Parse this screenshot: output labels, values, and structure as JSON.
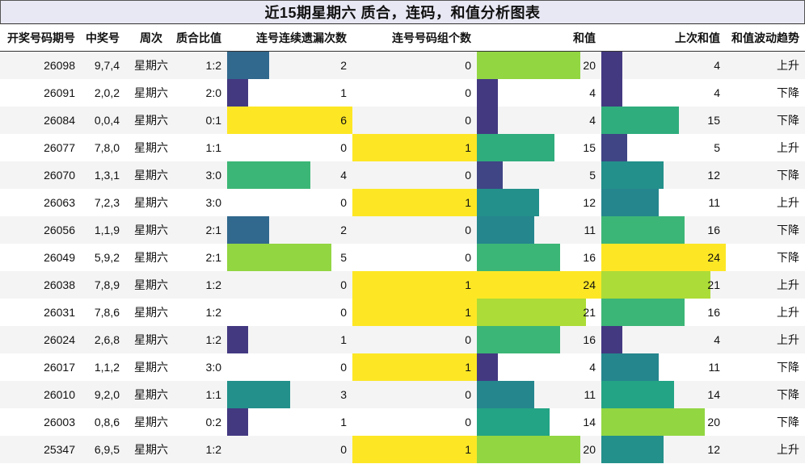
{
  "title": "近15期星期六 质合，连码，和值分析图表",
  "headers": {
    "issue": "开奖号码期号",
    "winning": "中奖号",
    "week": "周次",
    "ratio": "质合比值",
    "consec_miss": "连号连续遗漏次数",
    "consec_groups": "连号号码组个数",
    "sum": "和值",
    "prev_sum": "上次和值",
    "trend": "和值波动趋势"
  },
  "rows": [
    {
      "issue": "26098",
      "winning": "9,7,4",
      "week": "星期六",
      "ratio": "1:2",
      "miss": "2",
      "groups": "0",
      "sum": "20",
      "prev": "4",
      "trend": "上升"
    },
    {
      "issue": "26091",
      "winning": "2,0,2",
      "week": "星期六",
      "ratio": "2:0",
      "miss": "1",
      "groups": "0",
      "sum": "4",
      "prev": "4",
      "trend": "下降"
    },
    {
      "issue": "26084",
      "winning": "0,0,4",
      "week": "星期六",
      "ratio": "0:1",
      "miss": "6",
      "groups": "0",
      "sum": "4",
      "prev": "15",
      "trend": "下降"
    },
    {
      "issue": "26077",
      "winning": "7,8,0",
      "week": "星期六",
      "ratio": "1:1",
      "miss": "0",
      "groups": "1",
      "sum": "15",
      "prev": "5",
      "trend": "上升"
    },
    {
      "issue": "26070",
      "winning": "1,3,1",
      "week": "星期六",
      "ratio": "3:0",
      "miss": "4",
      "groups": "0",
      "sum": "5",
      "prev": "12",
      "trend": "下降"
    },
    {
      "issue": "26063",
      "winning": "7,2,3",
      "week": "星期六",
      "ratio": "3:0",
      "miss": "0",
      "groups": "1",
      "sum": "12",
      "prev": "11",
      "trend": "上升"
    },
    {
      "issue": "26056",
      "winning": "1,1,9",
      "week": "星期六",
      "ratio": "2:1",
      "miss": "2",
      "groups": "0",
      "sum": "11",
      "prev": "16",
      "trend": "下降"
    },
    {
      "issue": "26049",
      "winning": "5,9,2",
      "week": "星期六",
      "ratio": "2:1",
      "miss": "5",
      "groups": "0",
      "sum": "16",
      "prev": "24",
      "trend": "下降"
    },
    {
      "issue": "26038",
      "winning": "7,8,9",
      "week": "星期六",
      "ratio": "1:2",
      "miss": "0",
      "groups": "1",
      "sum": "24",
      "prev": "21",
      "trend": "上升"
    },
    {
      "issue": "26031",
      "winning": "7,8,6",
      "week": "星期六",
      "ratio": "1:2",
      "miss": "0",
      "groups": "1",
      "sum": "21",
      "prev": "16",
      "trend": "上升"
    },
    {
      "issue": "26024",
      "winning": "2,6,8",
      "week": "星期六",
      "ratio": "1:2",
      "miss": "1",
      "groups": "0",
      "sum": "16",
      "prev": "4",
      "trend": "上升"
    },
    {
      "issue": "26017",
      "winning": "1,1,2",
      "week": "星期六",
      "ratio": "3:0",
      "miss": "0",
      "groups": "1",
      "sum": "4",
      "prev": "11",
      "trend": "下降"
    },
    {
      "issue": "26010",
      "winning": "9,2,0",
      "week": "星期六",
      "ratio": "1:1",
      "miss": "3",
      "groups": "0",
      "sum": "11",
      "prev": "14",
      "trend": "下降"
    },
    {
      "issue": "26003",
      "winning": "0,8,6",
      "week": "星期六",
      "ratio": "0:2",
      "miss": "1",
      "groups": "0",
      "sum": "14",
      "prev": "20",
      "trend": "下降"
    },
    {
      "issue": "25347",
      "winning": "6,9,5",
      "week": "星期六",
      "ratio": "1:2",
      "miss": "0",
      "groups": "1",
      "sum": "20",
      "prev": "12",
      "trend": "上升"
    }
  ],
  "colors": {
    "row_even": "#f4f4f4",
    "row_odd": "#ffffff",
    "title_bg": "#e8e8f4",
    "scale": [
      "#440154",
      "#46327e",
      "#365c8d",
      "#277f8e",
      "#1fa187",
      "#4ac16d",
      "#a0da39",
      "#fde725"
    ]
  }
}
